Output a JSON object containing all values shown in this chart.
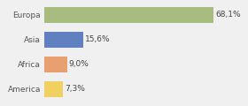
{
  "categories": [
    "America",
    "Africa",
    "Asia",
    "Europa"
  ],
  "values": [
    7.3,
    9.0,
    15.6,
    68.1
  ],
  "labels": [
    "7,3%",
    "9,0%",
    "15,6%",
    "68,1%"
  ],
  "bar_colors": [
    "#f0d060",
    "#e8a070",
    "#6080c0",
    "#a8bc80"
  ],
  "xlim": [
    0,
    80
  ],
  "background_color": "#f0f0f0",
  "bar_height": 0.65,
  "label_fontsize": 6.5,
  "tick_fontsize": 6.5
}
